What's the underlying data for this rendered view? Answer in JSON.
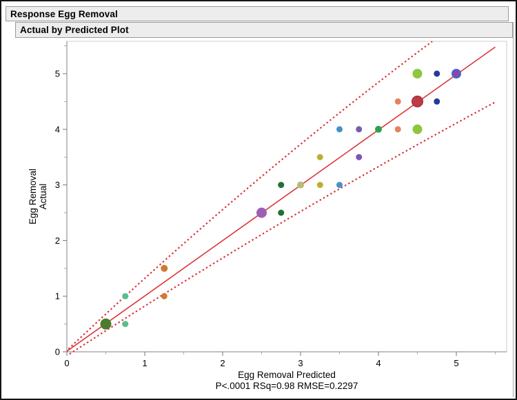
{
  "window": {
    "outline_title": "Response Egg Removal",
    "section_title": "Actual by Predicted Plot"
  },
  "chart_data": {
    "type": "scatter",
    "title": "Actual by Predicted Plot",
    "xlabel": "Egg Removal Predicted",
    "ylabel_lines": [
      "Egg Removal",
      "Actual"
    ],
    "stats_caption": "P<.0001 RSq=0.98 RMSE=0.2297",
    "stats": {
      "p_value": "<.0001",
      "r_squared": 0.98,
      "rmse": 0.2297
    },
    "xlim": [
      0,
      5.65
    ],
    "ylim": [
      0,
      5.58
    ],
    "grid": false,
    "x_axis": {
      "major_ticks": [
        0,
        1,
        2,
        3,
        4,
        5
      ],
      "minor_ticks": [
        0.5,
        1.5,
        2.5,
        3.5,
        4.5,
        5.5
      ],
      "tick_labels": [
        "0",
        "1",
        "2",
        "3",
        "4",
        "5"
      ]
    },
    "y_axis": {
      "major_ticks": [
        0,
        1,
        2,
        3,
        4,
        5
      ],
      "minor_ticks": [
        0.5,
        1.5,
        2.5,
        3.5,
        4.5,
        5.5
      ],
      "tick_labels": [
        "0",
        "1",
        "2",
        "3",
        "4",
        "5"
      ]
    },
    "colors": {
      "fit_line": "#df3538",
      "confidence_band": "#d93338",
      "axis_line": "#808080",
      "frame": "#cccccc",
      "tick_major": "#777777",
      "tick_minor": "#a5a5a5",
      "text": "#000000"
    },
    "fit_line": {
      "from": [
        0,
        0.01
      ],
      "to": [
        5.5,
        5.48
      ],
      "style": "solid"
    },
    "confidence_bands": {
      "style": "dotted",
      "upper": {
        "from": [
          0.02,
          0.05
        ],
        "ctrl": [
          2.35,
          3.14
        ],
        "to": [
          4.69,
          5.58
        ]
      },
      "lower": {
        "from": [
          0.035,
          -0.04
        ],
        "ctrl": [
          2.7,
          2.38
        ],
        "to": [
          5.5,
          4.49
        ]
      }
    },
    "points": [
      {
        "x": 0.5,
        "y": 0.5,
        "r": 8,
        "color": "#4a7c2c"
      },
      {
        "x": 0.75,
        "y": 0.5,
        "r": 4.5,
        "color": "#57bf8c"
      },
      {
        "x": 0.75,
        "y": 1.0,
        "r": 4.5,
        "color": "#57bf8c"
      },
      {
        "x": 1.25,
        "y": 1.0,
        "r": 4.5,
        "color": "#cf7a30"
      },
      {
        "x": 1.25,
        "y": 1.5,
        "r": 5,
        "color": "#cf7a30"
      },
      {
        "x": 2.5,
        "y": 2.5,
        "r": 7.5,
        "color": "#9c5fb5"
      },
      {
        "x": 2.75,
        "y": 2.5,
        "r": 4.5,
        "color": "#1d7233"
      },
      {
        "x": 2.75,
        "y": 3.0,
        "r": 4.5,
        "color": "#1d7233"
      },
      {
        "x": 3.0,
        "y": 3.0,
        "r": 5,
        "color": "#b9bc72"
      },
      {
        "x": 3.25,
        "y": 3.0,
        "r": 4.5,
        "color": "#beae32"
      },
      {
        "x": 3.5,
        "y": 3.0,
        "r": 4.5,
        "color": "#4593c6"
      },
      {
        "x": 3.25,
        "y": 3.5,
        "r": 4.5,
        "color": "#beae32"
      },
      {
        "x": 3.75,
        "y": 3.5,
        "r": 4.5,
        "color": "#7e57b5"
      },
      {
        "x": 3.5,
        "y": 4.0,
        "r": 4.5,
        "color": "#4593c6"
      },
      {
        "x": 3.75,
        "y": 4.0,
        "r": 4.5,
        "color": "#7e57b5"
      },
      {
        "x": 4.0,
        "y": 4.0,
        "r": 5,
        "color": "#2aa34c"
      },
      {
        "x": 4.25,
        "y": 4.0,
        "r": 4.5,
        "color": "#e5815e"
      },
      {
        "x": 4.5,
        "y": 4.0,
        "r": 7,
        "color": "#8dc63f"
      },
      {
        "x": 4.25,
        "y": 4.5,
        "r": 4.5,
        "color": "#e5815e"
      },
      {
        "x": 4.5,
        "y": 4.5,
        "r": 8,
        "color": "#bd3a46",
        "stroke": "#97242f"
      },
      {
        "x": 4.75,
        "y": 4.5,
        "r": 4.5,
        "color": "#26389a"
      },
      {
        "x": 4.5,
        "y": 5.0,
        "r": 7,
        "color": "#8dc63f"
      },
      {
        "x": 4.75,
        "y": 5.0,
        "r": 4.5,
        "color": "#26389a"
      },
      {
        "x": 5.0,
        "y": 5.0,
        "r": 7,
        "color": "#4465c8",
        "inner_color": "#a43b9e",
        "inner_r": 4
      }
    ]
  }
}
